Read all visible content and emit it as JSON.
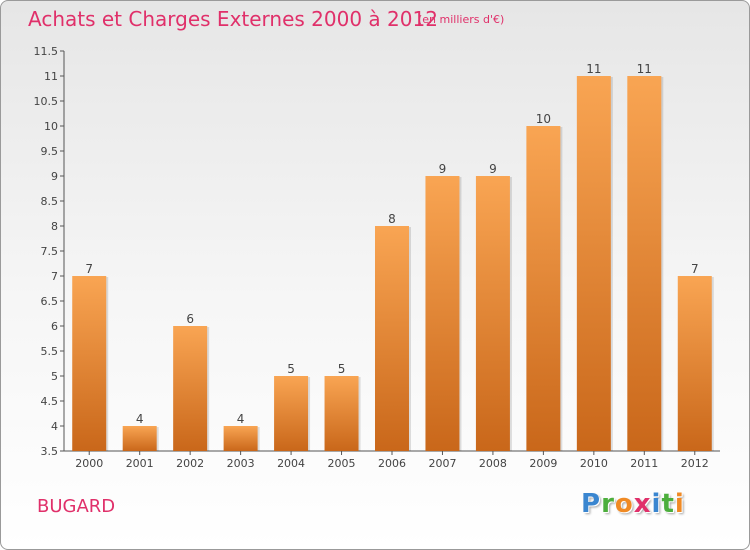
{
  "header": {
    "title": "Achats et Charges Externes 2000 à 2012",
    "subtitle": "(en milliers d'€)"
  },
  "footer": {
    "commune": "BUGARD",
    "logo_letters": [
      {
        "char": "P",
        "color": "#3a86d0"
      },
      {
        "char": "r",
        "color": "#4cae3c"
      },
      {
        "char": "o",
        "color": "#f08a24"
      },
      {
        "char": "x",
        "color": "#e0306a"
      },
      {
        "char": "i",
        "color": "#3a86d0"
      },
      {
        "char": "t",
        "color": "#4cae3c"
      },
      {
        "char": "i",
        "color": "#f08a24"
      }
    ]
  },
  "colors": {
    "bar_light": "#f9a553",
    "bar_dark": "#c9671a",
    "title": "#e0306a"
  },
  "chart_data": {
    "type": "bar",
    "title": "Achats et Charges Externes 2000 à 2012",
    "categories": [
      "2000",
      "2001",
      "2002",
      "2003",
      "2004",
      "2005",
      "2006",
      "2007",
      "2008",
      "2009",
      "2010",
      "2011",
      "2012"
    ],
    "values": [
      7,
      4,
      6,
      4,
      5,
      5,
      8,
      9,
      9,
      10,
      11,
      11,
      7
    ],
    "ylim": [
      3.5,
      11.5
    ],
    "yticks": [
      "3.5",
      "4",
      "4.5",
      "5",
      "5.5",
      "6",
      "6.5",
      "7",
      "7.5",
      "8",
      "8.5",
      "9",
      "9.5",
      "10",
      "10.5",
      "11",
      "11.5"
    ],
    "grid": false,
    "legend": "none"
  }
}
